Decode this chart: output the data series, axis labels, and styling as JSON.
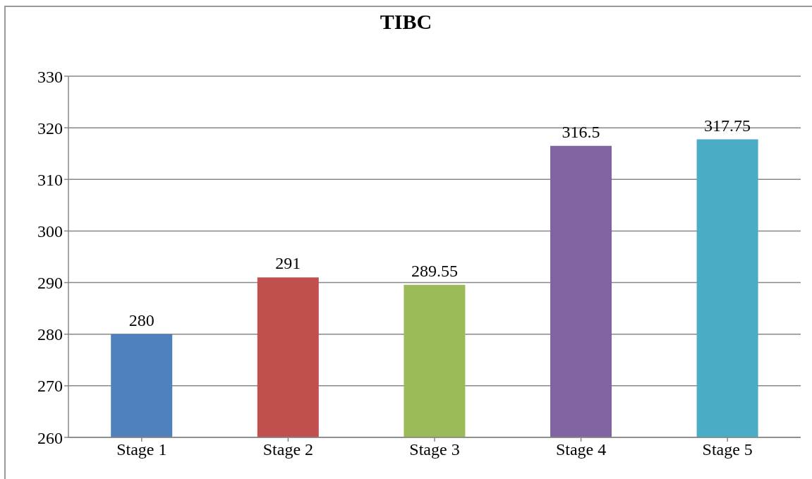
{
  "chart_data": {
    "type": "bar",
    "title": "TIBC",
    "categories": [
      "Stage 1",
      "Stage 2",
      "Stage 3",
      "Stage 4",
      "Stage 5"
    ],
    "values": [
      280,
      291,
      289.55,
      316.5,
      317.75
    ],
    "colors": [
      "#4f81bd",
      "#c0504d",
      "#9bbb59",
      "#8064a2",
      "#4bacc6"
    ],
    "ylim": [
      260,
      330
    ],
    "yticks": [
      260,
      270,
      280,
      290,
      300,
      310,
      320,
      330
    ],
    "grid": "y",
    "data_labels": true,
    "legend": false
  }
}
